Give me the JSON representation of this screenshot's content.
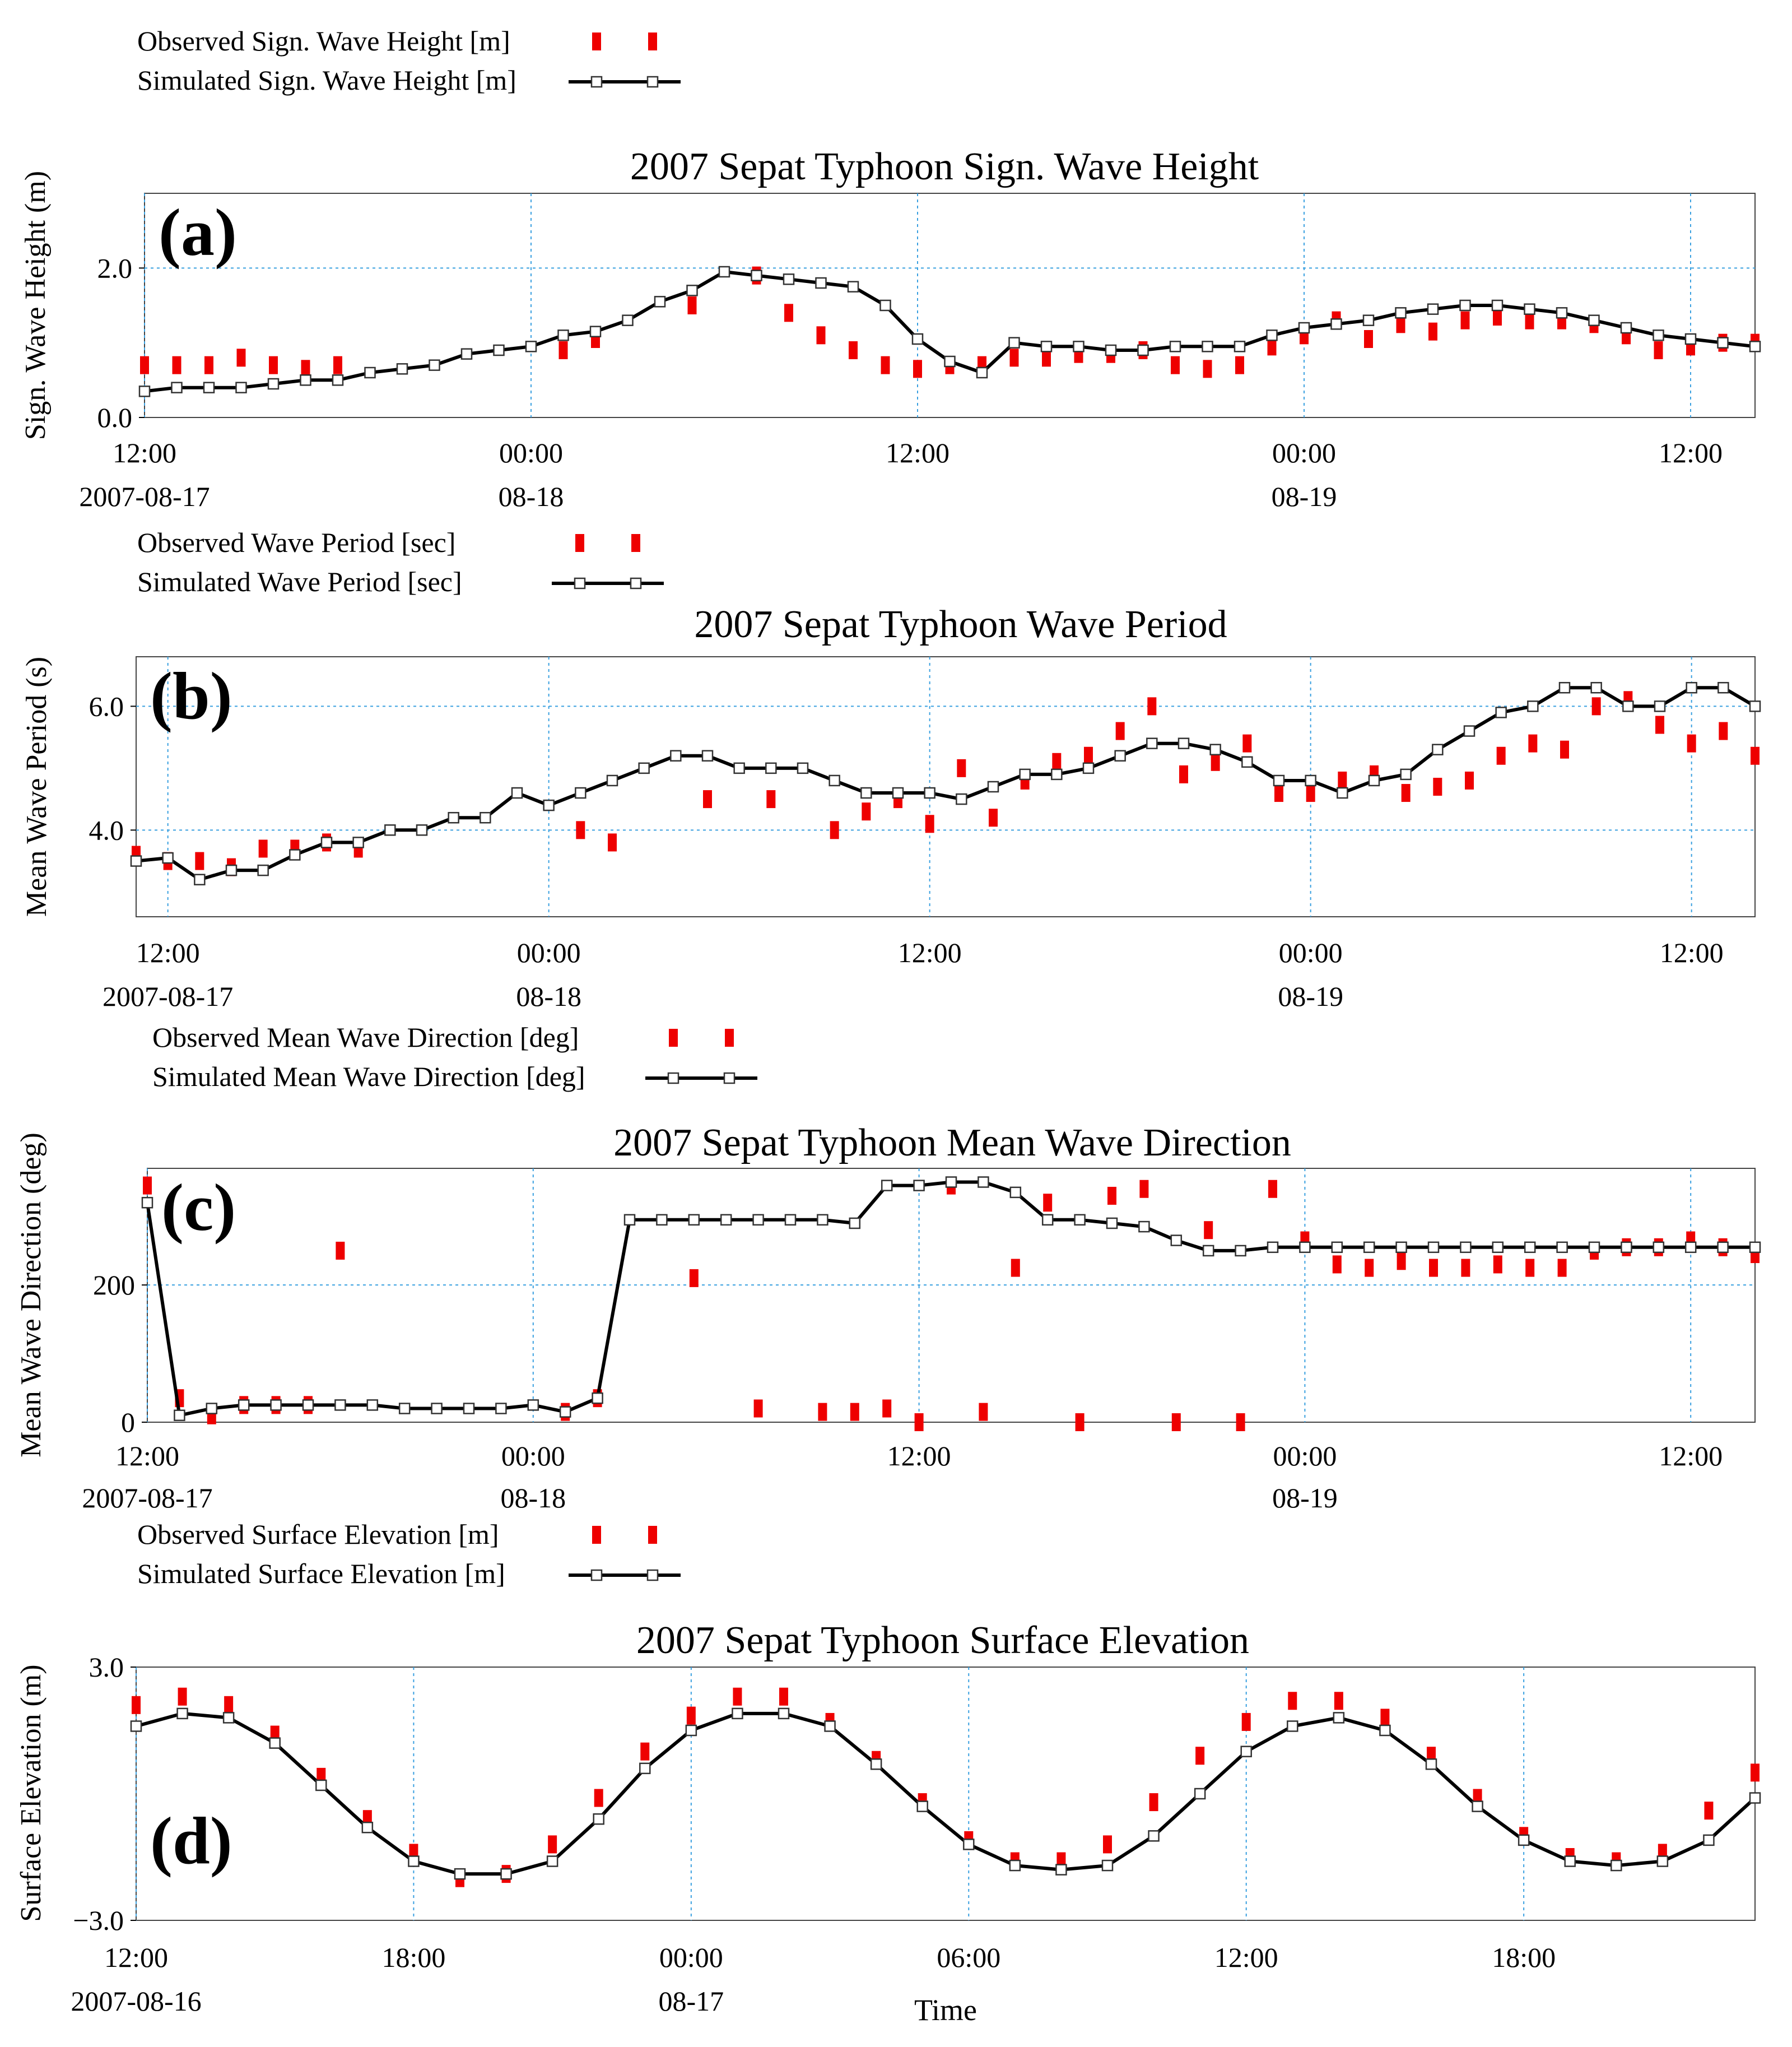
{
  "chart_data": [
    {
      "id": "a",
      "type": "line",
      "panel_label": "(a)",
      "title": "2007 Sepat Typhoon Sign. Wave Height",
      "ylabel": "Sign. Wave Height (m)",
      "xlabel": "",
      "x_unit": "hours since 2007-08-17 12:00",
      "xlim": [
        0,
        50
      ],
      "ylim": [
        0,
        3
      ],
      "yticks": [
        {
          "v": 0,
          "label": "0.0"
        },
        {
          "v": 2,
          "label": "2.0"
        }
      ],
      "xticks": [
        {
          "v": 0,
          "top": "12:00",
          "bottom": "2007-08-17"
        },
        {
          "v": 12,
          "top": "00:00",
          "bottom": "08-18"
        },
        {
          "v": 24,
          "top": "12:00",
          "bottom": ""
        },
        {
          "v": 36,
          "top": "00:00",
          "bottom": "08-19"
        },
        {
          "v": 48,
          "top": "12:00",
          "bottom": ""
        }
      ],
      "legend": {
        "observed": "Observed Sign. Wave Height  [m]",
        "simulated": "Simulated Sign. Wave Height [m]"
      },
      "series": [
        {
          "name": "Observed Sign. Wave Height [m]",
          "style": "observed",
          "x": [
            0,
            1,
            2,
            3,
            4,
            5,
            6,
            13,
            14,
            17,
            19,
            20,
            21,
            22,
            23,
            24,
            25,
            26,
            27,
            28,
            29,
            30,
            31,
            32,
            33,
            34,
            35,
            36,
            37,
            38,
            39,
            40,
            41,
            42,
            43,
            44,
            45,
            46,
            47,
            48,
            49,
            50
          ],
          "y": [
            0.7,
            0.7,
            0.7,
            0.8,
            0.7,
            0.65,
            0.7,
            0.9,
            1.05,
            1.5,
            1.9,
            1.4,
            1.1,
            0.9,
            0.7,
            0.65,
            0.7,
            0.7,
            0.8,
            0.8,
            0.85,
            0.85,
            0.9,
            0.7,
            0.65,
            0.7,
            0.95,
            1.1,
            1.3,
            1.05,
            1.25,
            1.15,
            1.3,
            1.35,
            1.3,
            1.3,
            1.25,
            1.1,
            0.9,
            0.95,
            1.0,
            1.0
          ]
        },
        {
          "name": "Simulated Sign. Wave Height [m]",
          "style": "simulated",
          "x": [
            0,
            1,
            2,
            3,
            4,
            5,
            6,
            7,
            8,
            9,
            10,
            11,
            12,
            13,
            14,
            15,
            16,
            17,
            18,
            19,
            20,
            21,
            22,
            23,
            24,
            25,
            26,
            27,
            28,
            29,
            30,
            31,
            32,
            33,
            34,
            35,
            36,
            37,
            38,
            39,
            40,
            41,
            42,
            43,
            44,
            45,
            46,
            47,
            48,
            49,
            50
          ],
          "y": [
            0.35,
            0.4,
            0.4,
            0.4,
            0.45,
            0.5,
            0.5,
            0.6,
            0.65,
            0.7,
            0.85,
            0.9,
            0.95,
            1.1,
            1.15,
            1.3,
            1.55,
            1.7,
            1.95,
            1.9,
            1.85,
            1.8,
            1.75,
            1.5,
            1.05,
            0.75,
            0.6,
            1.0,
            0.95,
            0.95,
            0.9,
            0.9,
            0.95,
            0.95,
            0.95,
            1.1,
            1.2,
            1.25,
            1.3,
            1.4,
            1.45,
            1.5,
            1.5,
            1.45,
            1.4,
            1.3,
            1.2,
            1.1,
            1.05,
            1.0,
            0.95
          ]
        }
      ]
    },
    {
      "id": "b",
      "type": "line",
      "panel_label": "(b)",
      "title": "2007 Sepat Typhoon  Wave Period",
      "ylabel": "Mean Wave Period (s)",
      "xlabel": "",
      "x_unit": "hours since 2007-08-17 12:00",
      "xlim": [
        -1,
        50
      ],
      "ylim": [
        2.6,
        6.8
      ],
      "yticks": [
        {
          "v": 4,
          "label": "4.0"
        },
        {
          "v": 6,
          "label": "6.0"
        }
      ],
      "xticks": [
        {
          "v": 0,
          "top": "12:00",
          "bottom": "2007-08-17"
        },
        {
          "v": 12,
          "top": "00:00",
          "bottom": "08-18"
        },
        {
          "v": 24,
          "top": "12:00",
          "bottom": ""
        },
        {
          "v": 36,
          "top": "00:00",
          "bottom": "08-19"
        },
        {
          "v": 48,
          "top": "12:00",
          "bottom": ""
        }
      ],
      "legend": {
        "observed": "Observed  Wave Period  [sec]",
        "simulated": "Simulated  Wave Period [sec]"
      },
      "series": [
        {
          "name": "Observed Wave Period [sec]",
          "style": "observed",
          "x": [
            -1,
            0,
            1,
            2,
            3,
            4,
            5,
            6,
            13,
            14,
            17,
            19,
            21,
            22,
            23,
            24,
            25,
            26,
            27,
            28,
            29,
            30,
            31,
            32,
            33,
            34,
            35,
            36,
            37,
            38,
            39,
            40,
            41,
            42,
            43,
            44,
            45,
            46,
            47,
            48,
            49,
            50
          ],
          "y": [
            3.6,
            3.5,
            3.5,
            3.4,
            3.7,
            3.7,
            3.8,
            3.7,
            4.0,
            3.8,
            4.5,
            4.5,
            4.0,
            4.3,
            4.5,
            4.1,
            5.0,
            4.2,
            4.8,
            5.1,
            5.2,
            5.6,
            6.0,
            4.9,
            5.1,
            5.4,
            4.6,
            4.6,
            4.8,
            4.9,
            4.6,
            4.7,
            4.8,
            5.2,
            5.4,
            5.3,
            6.0,
            6.1,
            5.7,
            5.4,
            5.6,
            5.2
          ]
        },
        {
          "name": "Simulated Wave Period [sec]",
          "style": "simulated",
          "x": [
            -1,
            0,
            1,
            2,
            3,
            4,
            5,
            6,
            7,
            8,
            9,
            10,
            11,
            12,
            13,
            14,
            15,
            16,
            17,
            18,
            19,
            20,
            21,
            22,
            23,
            24,
            25,
            26,
            27,
            28,
            29,
            30,
            31,
            32,
            33,
            34,
            35,
            36,
            37,
            38,
            39,
            40,
            41,
            42,
            43,
            44,
            45,
            46,
            47,
            48,
            49,
            50
          ],
          "y": [
            3.5,
            3.55,
            3.2,
            3.35,
            3.35,
            3.6,
            3.8,
            3.8,
            4.0,
            4.0,
            4.2,
            4.2,
            4.6,
            4.4,
            4.6,
            4.8,
            5.0,
            5.2,
            5.2,
            5.0,
            5.0,
            5.0,
            4.8,
            4.6,
            4.6,
            4.6,
            4.5,
            4.7,
            4.9,
            4.9,
            5.0,
            5.2,
            5.4,
            5.4,
            5.3,
            5.1,
            4.8,
            4.8,
            4.6,
            4.8,
            4.9,
            5.3,
            5.6,
            5.9,
            6.0,
            6.3,
            6.3,
            6.0,
            6.0,
            6.3,
            6.3,
            6.0
          ]
        }
      ]
    },
    {
      "id": "c",
      "type": "line",
      "panel_label": "(c)",
      "title": "2007 Sepat Typhoon Mean Wave Direction",
      "ylabel": "Mean Wave Direction (deg)",
      "xlabel": "",
      "x_unit": "hours since 2007-08-17 12:00",
      "xlim": [
        0,
        50
      ],
      "ylim": [
        0,
        370
      ],
      "yticks": [
        {
          "v": 0,
          "label": "0"
        },
        {
          "v": 200,
          "label": "200"
        }
      ],
      "xticks": [
        {
          "v": 0,
          "top": "12:00",
          "bottom": "2007-08-17"
        },
        {
          "v": 12,
          "top": "00:00",
          "bottom": "08-18"
        },
        {
          "v": 24,
          "top": "12:00",
          "bottom": ""
        },
        {
          "v": 36,
          "top": "00:00",
          "bottom": "08-19"
        },
        {
          "v": 48,
          "top": "12:00",
          "bottom": ""
        }
      ],
      "legend": {
        "observed": "Observed Mean Wave Direction  [deg]",
        "simulated": "Simulated  Mean Wave Direction [deg]"
      },
      "series": [
        {
          "name": "Observed Mean Wave Direction [deg]",
          "style": "observed",
          "x": [
            0,
            1,
            2,
            3,
            4,
            5,
            6,
            13,
            14,
            17,
            19,
            21,
            22,
            23,
            24,
            25,
            26,
            27,
            28,
            29,
            30,
            31,
            32,
            33,
            34,
            35,
            36,
            37,
            38,
            39,
            40,
            41,
            42,
            43,
            44,
            45,
            46,
            47,
            48,
            49,
            50
          ],
          "y": [
            345,
            35,
            10,
            25,
            25,
            25,
            250,
            15,
            35,
            210,
            20,
            15,
            15,
            20,
            0,
            345,
            15,
            225,
            320,
            0,
            330,
            340,
            0,
            280,
            0,
            340,
            265,
            230,
            225,
            235,
            225,
            225,
            230,
            225,
            225,
            250,
            255,
            255,
            265,
            255,
            245
          ]
        },
        {
          "name": "Simulated Mean Wave Direction [deg]",
          "style": "simulated",
          "x": [
            0,
            1,
            2,
            3,
            4,
            5,
            6,
            7,
            8,
            9,
            10,
            11,
            12,
            13,
            14,
            15,
            16,
            17,
            18,
            19,
            20,
            21,
            22,
            23,
            24,
            25,
            26,
            27,
            28,
            29,
            30,
            31,
            32,
            33,
            34,
            35,
            36,
            37,
            38,
            39,
            40,
            41,
            42,
            43,
            44,
            45,
            46,
            47,
            48,
            49,
            50
          ],
          "y": [
            320,
            10,
            20,
            25,
            25,
            25,
            25,
            25,
            20,
            20,
            20,
            20,
            25,
            15,
            35,
            295,
            295,
            295,
            295,
            295,
            295,
            295,
            290,
            345,
            345,
            350,
            350,
            335,
            295,
            295,
            290,
            285,
            265,
            250,
            250,
            255,
            255,
            255,
            255,
            255,
            255,
            255,
            255,
            255,
            255,
            255,
            255,
            255,
            255,
            255,
            255
          ]
        }
      ]
    },
    {
      "id": "d",
      "type": "line",
      "panel_label": "(d)",
      "title": "2007 Sepat Typhoon Surface Elevation",
      "ylabel": "Surface Elevation (m)",
      "xlabel": "Time",
      "x_unit": "hours since 2007-08-16 12:00",
      "xlim": [
        0,
        35
      ],
      "ylim": [
        -3,
        3
      ],
      "yticks": [
        {
          "v": -3,
          "label": "−3.0"
        },
        {
          "v": 3,
          "label": "3.0"
        }
      ],
      "xticks": [
        {
          "v": 0,
          "top": "12:00",
          "bottom": "2007-08-16"
        },
        {
          "v": 6,
          "top": "18:00",
          "bottom": ""
        },
        {
          "v": 12,
          "top": "00:00",
          "bottom": "08-17"
        },
        {
          "v": 18,
          "top": "06:00",
          "bottom": ""
        },
        {
          "v": 24,
          "top": "12:00",
          "bottom": ""
        },
        {
          "v": 30,
          "top": "18:00",
          "bottom": ""
        }
      ],
      "legend": {
        "observed": "Observed Surface Elevation  [m]",
        "simulated": "Simulated Surface Elevation [m]"
      },
      "series": [
        {
          "name": "Observed Surface Elevation [m]",
          "style": "observed",
          "x": [
            0,
            1,
            2,
            3,
            4,
            5,
            6,
            7,
            8,
            9,
            10,
            11,
            12,
            13,
            14,
            15,
            16,
            17,
            18,
            19,
            20,
            21,
            22,
            23,
            24,
            25,
            26,
            27,
            28,
            29,
            30,
            31,
            32,
            33,
            34,
            35
          ],
          "y": [
            2.1,
            2.3,
            2.1,
            1.4,
            0.4,
            -0.6,
            -1.4,
            -2.0,
            -1.9,
            -1.2,
            -0.1,
            1.0,
            1.85,
            2.3,
            2.3,
            1.7,
            0.8,
            -0.2,
            -1.1,
            -1.6,
            -1.6,
            -1.2,
            -0.2,
            0.9,
            1.7,
            2.2,
            2.2,
            1.8,
            0.9,
            -0.1,
            -1.0,
            -1.5,
            -1.6,
            -1.4,
            -0.4,
            0.5
          ]
        },
        {
          "name": "Simulated Surface Elevation [m]",
          "style": "simulated",
          "x": [
            0,
            1,
            2,
            3,
            4,
            5,
            6,
            7,
            8,
            9,
            10,
            11,
            12,
            13,
            14,
            15,
            16,
            17,
            18,
            19,
            20,
            21,
            22,
            23,
            24,
            25,
            26,
            27,
            28,
            29,
            30,
            31,
            32,
            33,
            34,
            35
          ],
          "y": [
            1.6,
            1.9,
            1.8,
            1.2,
            0.2,
            -0.8,
            -1.6,
            -1.9,
            -1.9,
            -1.6,
            -0.6,
            0.6,
            1.5,
            1.9,
            1.9,
            1.6,
            0.7,
            -0.3,
            -1.2,
            -1.7,
            -1.8,
            -1.7,
            -1.0,
            0.0,
            1.0,
            1.6,
            1.8,
            1.5,
            0.7,
            -0.3,
            -1.1,
            -1.6,
            -1.7,
            -1.6,
            -1.1,
            -0.1
          ]
        }
      ]
    }
  ]
}
